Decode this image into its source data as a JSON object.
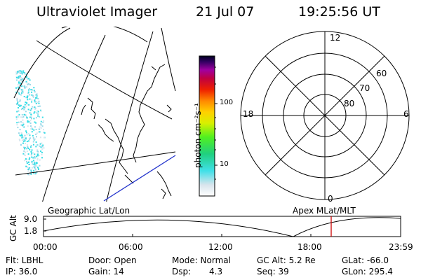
{
  "header": {
    "instrument": "Ultraviolet Imager",
    "date": "21 Jul 07",
    "time": "19:25:56 UT"
  },
  "colorbar": {
    "unit_label": "photon cm⁻²s⁻¹",
    "ticks": [
      "100",
      "10"
    ],
    "scale": "log"
  },
  "polar_plot": {
    "mlt_labels": {
      "top": "12",
      "bottom": "0",
      "left": "18",
      "right": "6"
    },
    "lat_labels": [
      "60",
      "70",
      "80"
    ]
  },
  "timeline": {
    "left_label": "Geographic Lat/Lon",
    "right_label": "Apex MLat/MLT",
    "axis_label": "GC Alt",
    "y_ticks": [
      "9.0",
      "1.8"
    ],
    "x_ticks": [
      "00:00",
      "06:00",
      "12:00",
      "18:00",
      "23:59"
    ],
    "current_time_marker": "19:25:56"
  },
  "info": {
    "flt": "Flt: LBHL",
    "ip": "IP: 36.0",
    "door": "Door: Open",
    "gain": "Gain: 14",
    "mode": "Mode: Normal",
    "dsp": "Dsp:",
    "dsp_val": "4.3",
    "gcalt": "GC Alt: 5.2 Re",
    "seq": "Seq: 39",
    "glat": "GLat: -66.0",
    "glon": "GLon: 295.4"
  },
  "colors": {
    "trace": "#000000",
    "marker": "#cc0000",
    "orbit_line": "#2233cc",
    "emission": "#33dde6"
  }
}
